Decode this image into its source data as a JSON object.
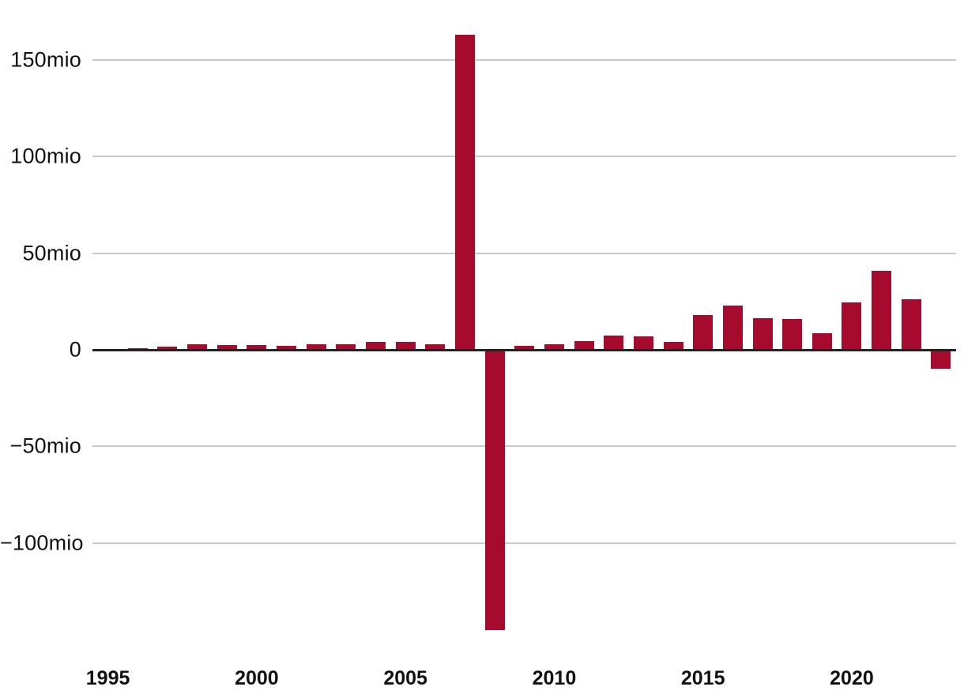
{
  "chart_data": {
    "type": "bar",
    "title": "",
    "xlabel": "",
    "ylabel": "",
    "unit": "mio",
    "x": [
      1995,
      1996,
      1997,
      1998,
      1999,
      2000,
      2001,
      2002,
      2003,
      2004,
      2005,
      2006,
      2007,
      2008,
      2009,
      2010,
      2011,
      2012,
      2013,
      2014,
      2015,
      2016,
      2017,
      2018,
      2019,
      2020,
      2021,
      2022,
      2023
    ],
    "values": [
      -1,
      1,
      1.5,
      3,
      2.5,
      2.5,
      2,
      3,
      3,
      4,
      4,
      3,
      163,
      -145,
      2,
      3,
      4.5,
      7.5,
      7,
      4,
      18,
      23,
      16.5,
      16,
      8.5,
      24.5,
      41,
      26,
      -10
    ],
    "y_ticks": [
      {
        "value": 150,
        "label": "150mio"
      },
      {
        "value": 100,
        "label": "100mio"
      },
      {
        "value": 50,
        "label": "50mio"
      },
      {
        "value": 0,
        "label": "0"
      },
      {
        "value": -50,
        "label": "−50mio"
      },
      {
        "value": -100,
        "label": "−100mio"
      }
    ],
    "x_ticks": [
      {
        "value": 1995,
        "label": "1995"
      },
      {
        "value": 2000,
        "label": "2000"
      },
      {
        "value": 2005,
        "label": "2005"
      },
      {
        "value": 2010,
        "label": "2010"
      },
      {
        "value": 2015,
        "label": "2015"
      },
      {
        "value": 2020,
        "label": "2020"
      }
    ],
    "ylim": [
      -148,
      165
    ],
    "grid": "horizontal",
    "legend": "none",
    "colors": {
      "bar": "#a60b2d",
      "gridline": "#c9c9c9",
      "zero_line": "#222222",
      "text": "#111111"
    }
  }
}
